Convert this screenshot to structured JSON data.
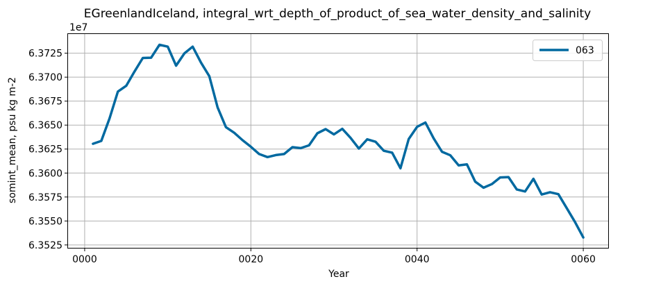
{
  "chart_data": {
    "type": "line",
    "title": "EGreenlandIceland, integral_wrt_depth_of_product_of_sea_water_density_and_salinity",
    "xlabel": "Year",
    "ylabel": "somint_mean, psu kg m-2",
    "y_offset_label": "1e7",
    "xlim": [
      -2,
      63
    ],
    "ylim": [
      63522000,
      63745000
    ],
    "x_ticks": [
      0,
      20,
      40,
      60
    ],
    "x_tick_labels": [
      "0000",
      "0020",
      "0040",
      "0060"
    ],
    "y_ticks": [
      63525000,
      63550000,
      63575000,
      63600000,
      63625000,
      63650000,
      63675000,
      63700000,
      63725000
    ],
    "y_tick_labels": [
      "6.3525",
      "6.3550",
      "6.3575",
      "6.3600",
      "6.3625",
      "6.3650",
      "6.3675",
      "6.3700",
      "6.3725"
    ],
    "grid": true,
    "legend_position": "top-right",
    "series": [
      {
        "name": "063",
        "color": "#0069a0",
        "x": [
          1,
          2,
          3,
          4,
          5,
          6,
          7,
          8,
          9,
          10,
          11,
          12,
          13,
          14,
          15,
          16,
          17,
          18,
          19,
          20,
          21,
          22,
          23,
          24,
          25,
          26,
          27,
          28,
          29,
          30,
          31,
          32,
          33,
          34,
          35,
          36,
          37,
          38,
          39,
          40,
          41,
          42,
          43,
          44,
          45,
          46,
          47,
          48,
          49,
          50,
          51,
          52,
          53,
          54,
          55,
          56,
          57,
          58,
          59,
          60
        ],
        "values": [
          63630500,
          63633500,
          63657000,
          63685000,
          63691000,
          63706000,
          63720000,
          63720300,
          63733800,
          63731800,
          63712000,
          63724800,
          63731800,
          63715200,
          63701000,
          63668500,
          63647800,
          63642000,
          63634200,
          63627400,
          63619800,
          63616600,
          63618700,
          63619800,
          63627000,
          63626000,
          63628900,
          63641500,
          63645800,
          63640300,
          63646100,
          63636600,
          63625500,
          63635200,
          63632600,
          63623200,
          63621300,
          63605000,
          63635500,
          63648200,
          63652700,
          63636200,
          63622200,
          63618500,
          63608000,
          63609000,
          63591000,
          63584700,
          63588500,
          63595400,
          63595800,
          63582900,
          63580800,
          63594000,
          63577600,
          63580000,
          63578000,
          63563500,
          63549000,
          63532800
        ]
      }
    ]
  }
}
